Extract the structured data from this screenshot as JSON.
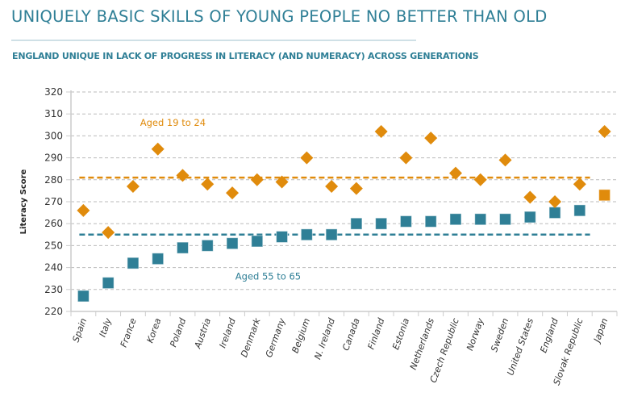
{
  "header": {
    "title": "UNIQUELY BASIC SKILLS OF YOUNG PEOPLE NO BETTER THAN OLD",
    "subtitle": "ENGLAND UNIQUE IN LACK OF PROGRESS IN LITERACY (AND NUMERACY) ACROSS GENERATIONS"
  },
  "colors": {
    "young": "#e08b0c",
    "old": "#2f7f96",
    "grid": "#bbbbbb",
    "axis": "#cccccc",
    "highlight": "#e08b0c"
  },
  "chart_data": {
    "type": "scatter",
    "title": "UNIQUELY BASIC SKILLS OF YOUNG PEOPLE NO BETTER THAN OLD",
    "subtitle": "ENGLAND UNIQUE IN LACK OF PROGRESS IN LITERACY (AND NUMERACY) ACROSS GENERATIONS",
    "xlabel": "",
    "ylabel": "Literacy Score",
    "ylim": [
      220,
      320
    ],
    "yticks": [
      220,
      230,
      240,
      250,
      260,
      270,
      280,
      290,
      300,
      310,
      320
    ],
    "grid": true,
    "categories": [
      "Spain",
      "Italy",
      "France",
      "Korea",
      "Poland",
      "Austria",
      "Ireland",
      "Denmark",
      "Germany",
      "Belgium",
      "N. Ireland",
      "Canada",
      "Finland",
      "Estonia",
      "Netherlands",
      "Czech Republic",
      "Norway",
      "Sweden",
      "United States",
      "England",
      "Slovak Republic",
      "Japan"
    ],
    "series": [
      {
        "name": "Aged 19 to 24",
        "marker": "diamond",
        "values": [
          266,
          256,
          277,
          294,
          282,
          278,
          274,
          280,
          279,
          290,
          277,
          276,
          302,
          290,
          299,
          283,
          280,
          289,
          272,
          270,
          278,
          302
        ],
        "average": 281
      },
      {
        "name": "Aged 55 to 65",
        "marker": "square",
        "values": [
          227,
          233,
          242,
          244,
          249,
          250,
          251,
          252,
          254,
          255,
          255,
          260,
          260,
          261,
          261,
          262,
          262,
          262,
          263,
          265,
          266,
          273
        ],
        "average": 255
      }
    ],
    "annotations": [
      {
        "text": "Aged 19 to 24",
        "series": "young",
        "at": {
          "category": "Korea",
          "value": 306
        }
      },
      {
        "text": "Aged 55 to 65",
        "series": "old",
        "at": {
          "category": "Denmark",
          "value": 236
        }
      }
    ],
    "notes": "Japan's Aged 55 to 65 marker is drawn in orange; England's young and old markers overlap"
  }
}
